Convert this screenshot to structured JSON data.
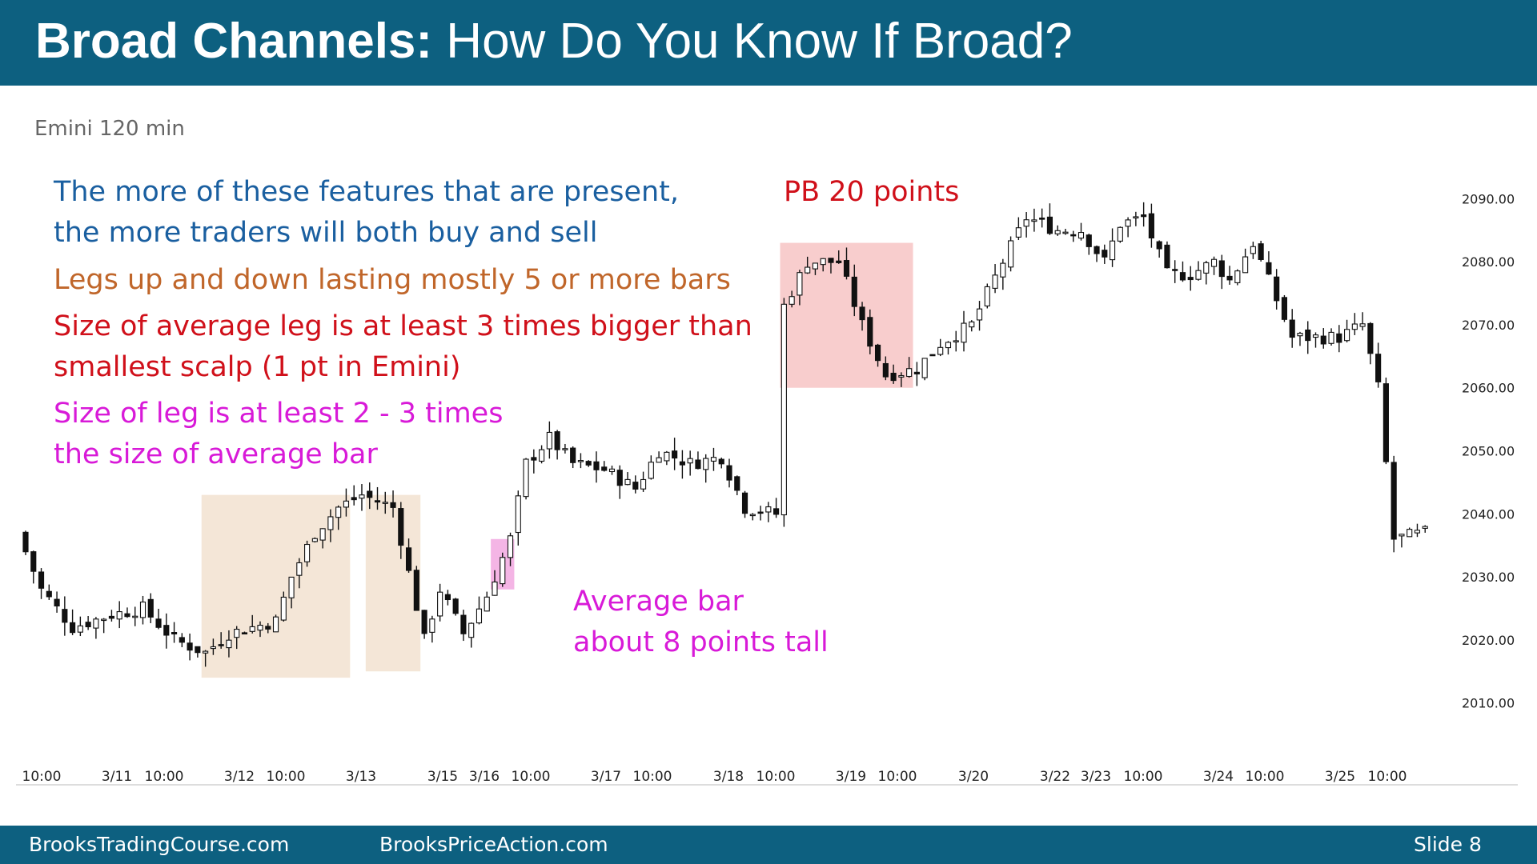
{
  "title": {
    "bold": "Broad Channels:",
    "rest": "How Do You Know If Broad?"
  },
  "subtitle": "Emini 120 min",
  "notes": {
    "blue_line1": "The more of these features that are present,",
    "blue_line2": "the more traders will both buy and sell",
    "orange": "Legs up and down lasting mostly 5 or more bars",
    "red_line1": "Size of average leg is at least 3 times bigger than",
    "red_line2": "smallest scalp (1 pt in Emini)",
    "magenta_line1": "Size of leg is at least 2 - 3 times",
    "magenta_line2": "the size of average bar",
    "pb": "PB 20 points",
    "avg_line1": "Average bar",
    "avg_line2": "about 8 points tall"
  },
  "footer": {
    "left": "BrooksTradingCourse.com",
    "center": "BrooksPriceAction.com",
    "slide": "Slide  8"
  },
  "colors": {
    "header": "#0d6080",
    "leg_box": "#f2e2d0",
    "pb_box": "#f7c4c4",
    "avg_box": "#f2a8e0"
  },
  "chart_data": {
    "type": "candlestick",
    "ylim": [
      2005,
      2095
    ],
    "y_ticks": [
      "2010.00",
      "2020.00",
      "2030.00",
      "2040.00",
      "2050.00",
      "2060.00",
      "2070.00",
      "2080.00",
      "2090.00"
    ],
    "x_ticks": [
      "10:00",
      "3/11",
      "10:00",
      "3/12",
      "10:00",
      "3/13",
      "3/15",
      "3/16",
      "10:00",
      "3/17",
      "10:00",
      "3/18",
      "10:00",
      "3/19",
      "10:00",
      "3/20",
      "3/22",
      "3/23",
      "10:00",
      "3/24",
      "10:00",
      "3/25",
      "10:00"
    ],
    "bar_count": 180,
    "waypoints": [
      [
        0,
        2037
      ],
      [
        3,
        2028
      ],
      [
        7,
        2022
      ],
      [
        12,
        2024
      ],
      [
        16,
        2025
      ],
      [
        20,
        2020
      ],
      [
        24,
        2018
      ],
      [
        27,
        2021
      ],
      [
        30,
        2022
      ],
      [
        33,
        2023
      ],
      [
        35,
        2030
      ],
      [
        38,
        2037
      ],
      [
        41,
        2041
      ],
      [
        44,
        2043
      ],
      [
        46,
        2042
      ],
      [
        48,
        2041
      ],
      [
        49,
        2036
      ],
      [
        52,
        2020
      ],
      [
        54,
        2028
      ],
      [
        57,
        2021
      ],
      [
        60,
        2027
      ],
      [
        63,
        2036
      ],
      [
        65,
        2048
      ],
      [
        68,
        2052
      ],
      [
        71,
        2048
      ],
      [
        75,
        2047
      ],
      [
        79,
        2044
      ],
      [
        82,
        2050
      ],
      [
        86,
        2048
      ],
      [
        90,
        2049
      ],
      [
        93,
        2041
      ],
      [
        97,
        2040
      ],
      [
        98,
        2073
      ],
      [
        101,
        2080
      ],
      [
        105,
        2080
      ],
      [
        108,
        2070
      ],
      [
        111,
        2062
      ],
      [
        115,
        2063
      ],
      [
        118,
        2067
      ],
      [
        122,
        2070
      ],
      [
        126,
        2080
      ],
      [
        129,
        2087
      ],
      [
        133,
        2085
      ],
      [
        136,
        2085
      ],
      [
        139,
        2080
      ],
      [
        141,
        2086
      ],
      [
        144,
        2087
      ],
      [
        147,
        2078
      ],
      [
        150,
        2078
      ],
      [
        153,
        2080
      ],
      [
        155,
        2077
      ],
      [
        158,
        2083
      ],
      [
        161,
        2074
      ],
      [
        163,
        2068
      ],
      [
        166,
        2068
      ],
      [
        169,
        2068
      ],
      [
        172,
        2070
      ],
      [
        174,
        2060
      ],
      [
        176,
        2036
      ],
      [
        180,
        2037
      ]
    ],
    "boxes": [
      {
        "label": "leg-up",
        "bars": [
          23,
          41
        ],
        "y": [
          2014,
          2043
        ]
      },
      {
        "label": "leg-down",
        "bars": [
          44,
          50
        ],
        "y": [
          2015,
          2043
        ]
      },
      {
        "label": "average-bar",
        "bars": [
          60,
          62
        ],
        "y": [
          2028,
          2036
        ]
      },
      {
        "label": "pullback-20-points",
        "bars": [
          97,
          113
        ],
        "y": [
          2060,
          2083
        ]
      }
    ]
  }
}
